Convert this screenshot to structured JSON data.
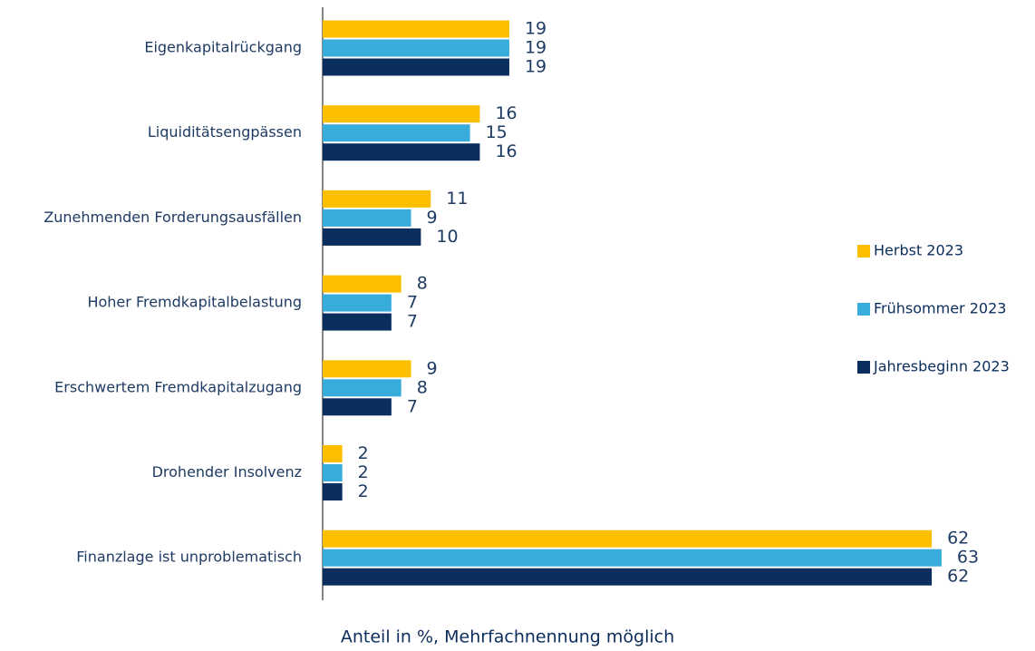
{
  "chart_data": {
    "type": "hbar",
    "x_label": "Anteil in %, Mehrfachnennung möglich",
    "categories": [
      "Eigenkapitalrückgang",
      "Liquiditätsengpässen",
      "Zunehmenden Forderungsausfällen",
      "Hoher Fremdkapitalbelastung",
      "Erschwertem Fremdkapitalzugang",
      "Drohender Insolvenz",
      "Finanzlage ist unproblematisch"
    ],
    "series": [
      {
        "name": "Herbst 2023",
        "color": "#fbbf00",
        "values": [
          19,
          16,
          11,
          8,
          9,
          2,
          62
        ]
      },
      {
        "name": "Frühsommer 2023",
        "color": "#38acdb",
        "values": [
          19,
          15,
          9,
          7,
          8,
          2,
          63
        ]
      },
      {
        "name": "Jahresbeginn 2023",
        "color": "#0a2f5e",
        "values": [
          19,
          16,
          10,
          7,
          7,
          2,
          62
        ]
      }
    ],
    "xlim": [
      0,
      70
    ],
    "legend": "right",
    "show_value_labels": true
  }
}
